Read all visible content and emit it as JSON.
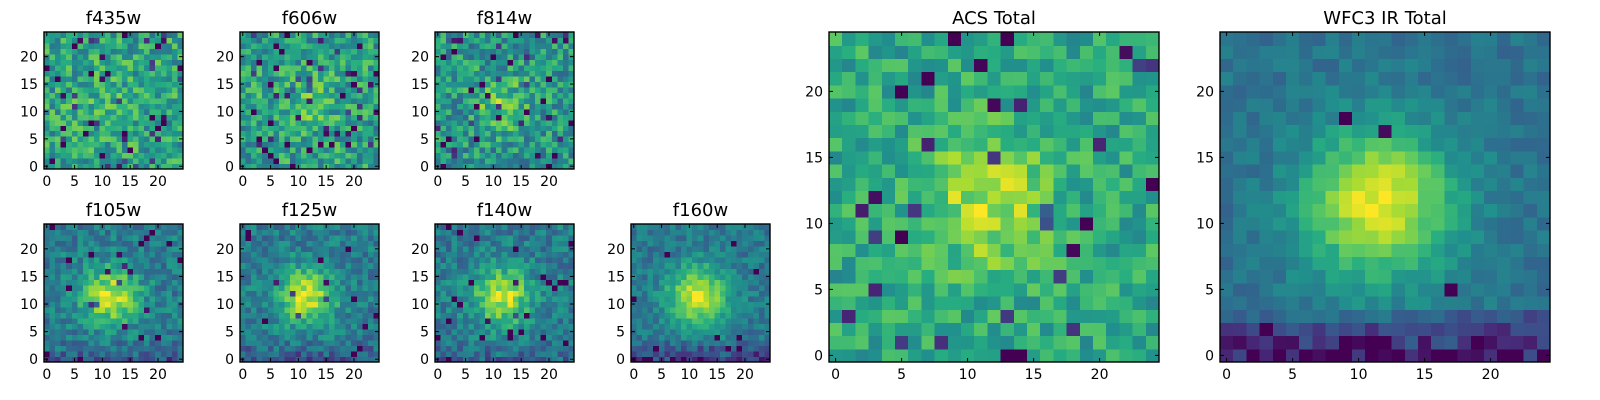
{
  "chart_data": [
    {
      "type": "heatmap",
      "title": "f435w",
      "xticks": [
        "0",
        "5",
        "10",
        "15",
        "20"
      ],
      "yticks": [
        "0",
        "5",
        "10",
        "15",
        "20"
      ],
      "xlim": [
        -0.5,
        24.5
      ],
      "ylim": [
        -0.5,
        24.5
      ],
      "grid_size": 25,
      "colormap": "viridis",
      "pattern": {
        "seed": 11,
        "peak": 0.05,
        "sigma": 4.5,
        "noise": 0.42,
        "base": 0.58,
        "dark_rate": 0.07,
        "bottom_dark": 0
      }
    },
    {
      "type": "heatmap",
      "title": "f606w",
      "xticks": [
        "0",
        "5",
        "10",
        "15",
        "20"
      ],
      "yticks": [
        "0",
        "5",
        "10",
        "15",
        "20"
      ],
      "xlim": [
        -0.5,
        24.5
      ],
      "ylim": [
        -0.5,
        24.5
      ],
      "grid_size": 25,
      "colormap": "viridis",
      "pattern": {
        "seed": 23,
        "peak": 0.12,
        "sigma": 4.5,
        "noise": 0.42,
        "base": 0.56,
        "dark_rate": 0.06,
        "bottom_dark": 0
      }
    },
    {
      "type": "heatmap",
      "title": "f814w",
      "xticks": [
        "0",
        "5",
        "10",
        "15",
        "20"
      ],
      "yticks": [
        "0",
        "5",
        "10",
        "15",
        "20"
      ],
      "xlim": [
        -0.5,
        24.5
      ],
      "ylim": [
        -0.5,
        24.5
      ],
      "grid_size": 25,
      "colormap": "viridis",
      "pattern": {
        "seed": 37,
        "peak": 0.22,
        "sigma": 3.5,
        "noise": 0.42,
        "base": 0.52,
        "dark_rate": 0.06,
        "bottom_dark": 0
      }
    },
    {
      "type": "heatmap",
      "title": "f105w",
      "xticks": [
        "0",
        "5",
        "10",
        "15",
        "20"
      ],
      "yticks": [
        "0",
        "5",
        "10",
        "15",
        "20"
      ],
      "xlim": [
        -0.5,
        24.5
      ],
      "ylim": [
        -0.5,
        24.5
      ],
      "grid_size": 25,
      "colormap": "viridis",
      "pattern": {
        "seed": 41,
        "peak": 0.5,
        "sigma": 3.6,
        "noise": 0.28,
        "base": 0.42,
        "dark_rate": 0.03,
        "bottom_dark": 0.15
      }
    },
    {
      "type": "heatmap",
      "title": "f125w",
      "xticks": [
        "0",
        "5",
        "10",
        "15",
        "20"
      ],
      "yticks": [
        "0",
        "5",
        "10",
        "15",
        "20"
      ],
      "xlim": [
        -0.5,
        24.5
      ],
      "ylim": [
        -0.5,
        24.5
      ],
      "grid_size": 25,
      "colormap": "viridis",
      "pattern": {
        "seed": 53,
        "peak": 0.5,
        "sigma": 3.6,
        "noise": 0.28,
        "base": 0.42,
        "dark_rate": 0.03,
        "bottom_dark": 0.15
      }
    },
    {
      "type": "heatmap",
      "title": "f140w",
      "xticks": [
        "0",
        "5",
        "10",
        "15",
        "20"
      ],
      "yticks": [
        "0",
        "5",
        "10",
        "15",
        "20"
      ],
      "xlim": [
        -0.5,
        24.5
      ],
      "ylim": [
        -0.5,
        24.5
      ],
      "grid_size": 25,
      "colormap": "viridis",
      "pattern": {
        "seed": 67,
        "peak": 0.5,
        "sigma": 3.6,
        "noise": 0.28,
        "base": 0.42,
        "dark_rate": 0.03,
        "bottom_dark": 0.12
      }
    },
    {
      "type": "heatmap",
      "title": "f160w",
      "xticks": [
        "0",
        "5",
        "10",
        "15",
        "20"
      ],
      "yticks": [
        "0",
        "5",
        "10",
        "15",
        "20"
      ],
      "xlim": [
        -0.5,
        24.5
      ],
      "ylim": [
        -0.5,
        24.5
      ],
      "grid_size": 25,
      "colormap": "viridis",
      "pattern": {
        "seed": 79,
        "peak": 0.55,
        "sigma": 3.8,
        "noise": 0.22,
        "base": 0.4,
        "dark_rate": 0.02,
        "bottom_dark": 0.25
      }
    },
    {
      "type": "heatmap",
      "title": "ACS Total",
      "xticks": [
        "0",
        "5",
        "10",
        "15",
        "20"
      ],
      "yticks": [
        "0",
        "5",
        "10",
        "15",
        "20"
      ],
      "xlim": [
        -0.5,
        24.5
      ],
      "ylim": [
        -0.5,
        24.5
      ],
      "grid_size": 25,
      "colormap": "viridis",
      "pattern": {
        "seed": 97,
        "peak": 0.3,
        "sigma": 3.4,
        "noise": 0.3,
        "base": 0.6,
        "dark_rate": 0.05,
        "bottom_dark": 0
      }
    },
    {
      "type": "heatmap",
      "title": "WFC3 IR Total",
      "xticks": [
        "0",
        "5",
        "10",
        "15",
        "20"
      ],
      "yticks": [
        "0",
        "5",
        "10",
        "15",
        "20"
      ],
      "xlim": [
        -0.5,
        24.5
      ],
      "ylim": [
        -0.5,
        24.5
      ],
      "grid_size": 25,
      "colormap": "viridis",
      "pattern": {
        "seed": 113,
        "peak": 0.6,
        "sigma": 4.0,
        "noise": 0.14,
        "base": 0.38,
        "dark_rate": 0.01,
        "bottom_dark": 0.35
      }
    }
  ]
}
